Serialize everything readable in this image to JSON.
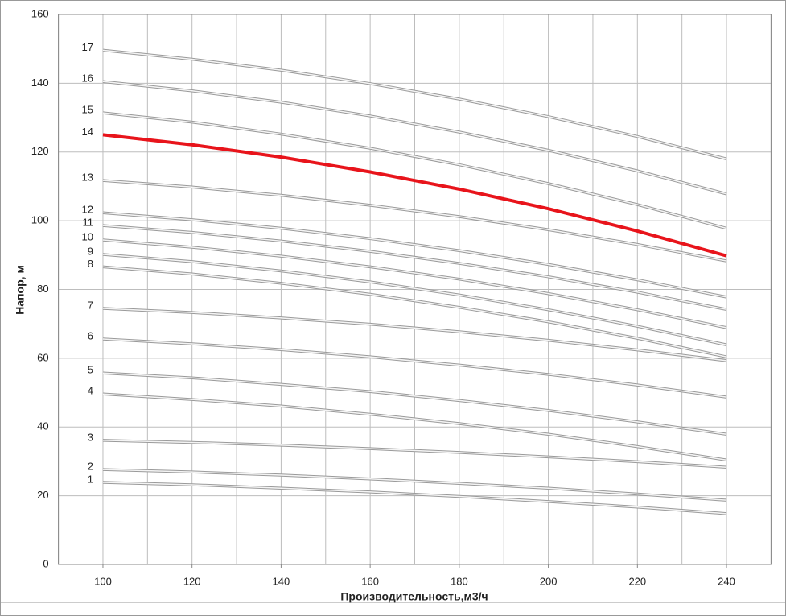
{
  "chart_data": {
    "type": "line",
    "x_label": "Производительность,м3/ч",
    "y_label": "Напор, м",
    "x": [
      100,
      120,
      140,
      160,
      180,
      200,
      220,
      240
    ],
    "xlim": [
      90,
      250
    ],
    "ylim": [
      0,
      160
    ],
    "xticks": [
      100,
      120,
      140,
      160,
      180,
      200,
      220,
      240
    ],
    "x_minor_grid": [
      90,
      110,
      130,
      150,
      170,
      190,
      210,
      230,
      250
    ],
    "yticks": [
      0,
      20,
      40,
      60,
      80,
      100,
      120,
      140,
      160
    ],
    "grid": true,
    "series": [
      {
        "name": "1",
        "color": "#c4c4c4",
        "values": [
          23.9,
          23.2,
          22.2,
          21.1,
          19.8,
          18.3,
          16.7,
          14.8
        ]
      },
      {
        "name": "2",
        "color": "#c4c4c4",
        "values": [
          27.6,
          26.9,
          26.0,
          24.9,
          23.6,
          22.2,
          20.5,
          18.7
        ]
      },
      {
        "name": "3",
        "color": "#c4c4c4",
        "values": [
          36.1,
          35.5,
          34.7,
          33.7,
          32.6,
          31.3,
          29.9,
          28.3
        ]
      },
      {
        "name": "4",
        "color": "#c4c4c4",
        "values": [
          49.6,
          48.0,
          46.1,
          43.7,
          41.0,
          37.9,
          34.3,
          30.4
        ]
      },
      {
        "name": "5",
        "color": "#c4c4c4",
        "values": [
          55.7,
          54.3,
          52.4,
          50.3,
          47.7,
          44.8,
          41.5,
          37.9
        ]
      },
      {
        "name": "6",
        "color": "#c4c4c4",
        "values": [
          65.6,
          64.2,
          62.5,
          60.4,
          58.0,
          55.3,
          52.2,
          48.7
        ]
      },
      {
        "name": "7",
        "color": "#c4c4c4",
        "values": [
          74.5,
          73.3,
          71.7,
          69.9,
          67.7,
          65.2,
          62.4,
          59.3
        ]
      },
      {
        "name": "8",
        "color": "#c4c4c4",
        "values": [
          86.6,
          84.5,
          81.8,
          78.6,
          74.8,
          70.6,
          65.8,
          60.4
        ]
      },
      {
        "name": "9",
        "color": "#c4c4c4",
        "values": [
          90.2,
          88.1,
          85.4,
          82.2,
          78.4,
          74.1,
          69.3,
          63.9
        ]
      },
      {
        "name": "10",
        "color": "#c4c4c4",
        "values": [
          94.4,
          92.3,
          89.7,
          86.6,
          83.0,
          78.8,
          74.1,
          68.9
        ]
      },
      {
        "name": "11",
        "color": "#c4c4c4",
        "values": [
          98.6,
          96.6,
          94.1,
          91.1,
          87.6,
          83.7,
          79.2,
          74.2
        ]
      },
      {
        "name": "12",
        "color": "#c4c4c4",
        "values": [
          102.3,
          100.3,
          97.8,
          94.8,
          91.3,
          87.3,
          82.8,
          77.8
        ]
      },
      {
        "name": "13",
        "color": "#c4c4c4",
        "values": [
          111.7,
          109.8,
          107.4,
          104.5,
          101.2,
          97.4,
          93.1,
          88.3
        ]
      },
      {
        "name": "14",
        "color": "#e8141b",
        "values": [
          125.0,
          122.1,
          118.5,
          114.2,
          109.2,
          103.5,
          97.0,
          89.8
        ]
      },
      {
        "name": "15",
        "color": "#c4c4c4",
        "values": [
          131.4,
          128.7,
          125.2,
          121.1,
          116.3,
          110.8,
          104.7,
          97.8
        ]
      },
      {
        "name": "16",
        "color": "#c4c4c4",
        "values": [
          140.5,
          137.8,
          134.5,
          130.5,
          125.8,
          120.5,
          114.5,
          107.8
        ]
      },
      {
        "name": "17",
        "color": "#c4c4c4",
        "values": [
          149.6,
          147.0,
          143.8,
          139.9,
          135.4,
          130.3,
          124.5,
          118.0
        ]
      }
    ]
  }
}
